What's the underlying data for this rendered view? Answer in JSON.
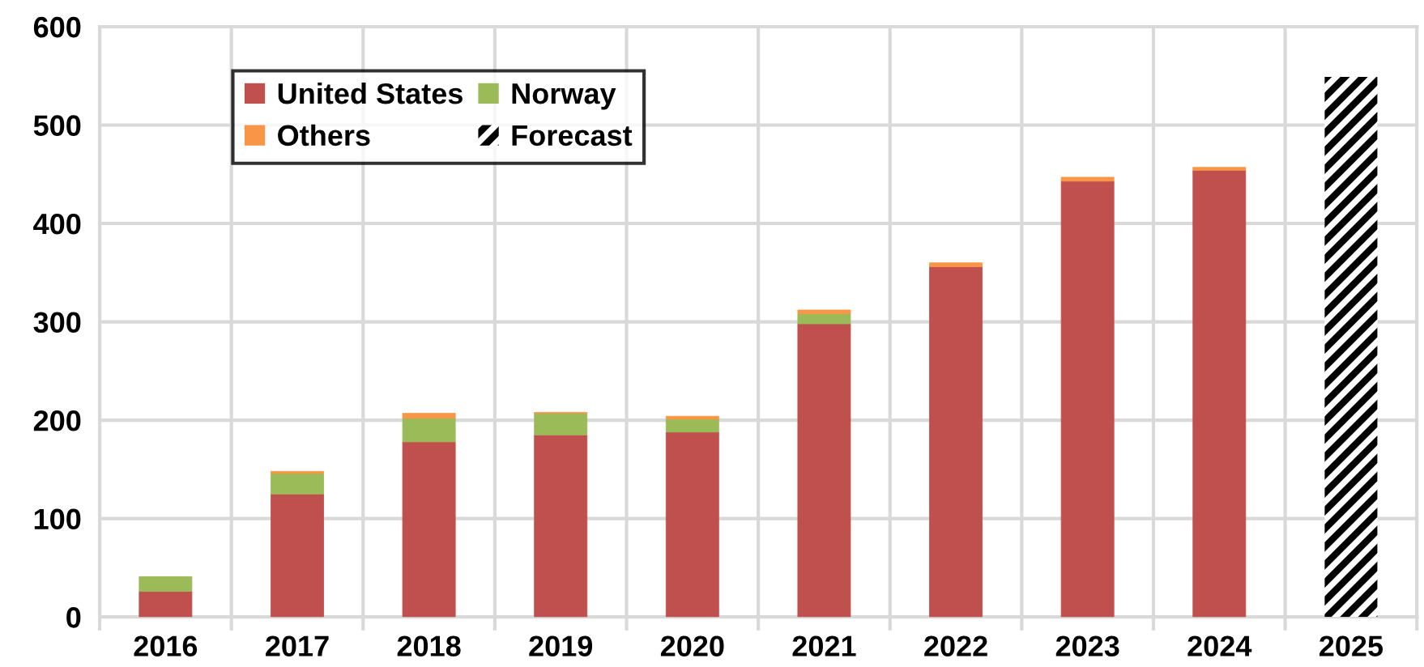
{
  "chart_data": {
    "type": "bar",
    "stacked": true,
    "categories": [
      "2016",
      "2017",
      "2018",
      "2019",
      "2020",
      "2021",
      "2022",
      "2023",
      "2024",
      "2025"
    ],
    "series": [
      {
        "name": "United States",
        "color": "#c0504d",
        "values": [
          26,
          125,
          178,
          185,
          188,
          298,
          356,
          443,
          454,
          null
        ]
      },
      {
        "name": "Norway",
        "color": "#9bbb59",
        "values": [
          15,
          21,
          24,
          22,
          13,
          10,
          null,
          null,
          null,
          null
        ]
      },
      {
        "name": "Others",
        "color": "#f79646",
        "values": [
          null,
          2,
          5,
          1,
          3,
          4,
          4,
          4,
          3,
          null
        ]
      },
      {
        "name": "Forecast",
        "color": "#000000",
        "line_style": "dashed",
        "values": [
          null,
          null,
          null,
          null,
          null,
          null,
          null,
          null,
          null,
          549
        ]
      }
    ],
    "ylim": [
      0,
      600
    ],
    "yticks": [
      0,
      100,
      200,
      300,
      400,
      500,
      600
    ],
    "grid": true,
    "legend": "top left"
  }
}
